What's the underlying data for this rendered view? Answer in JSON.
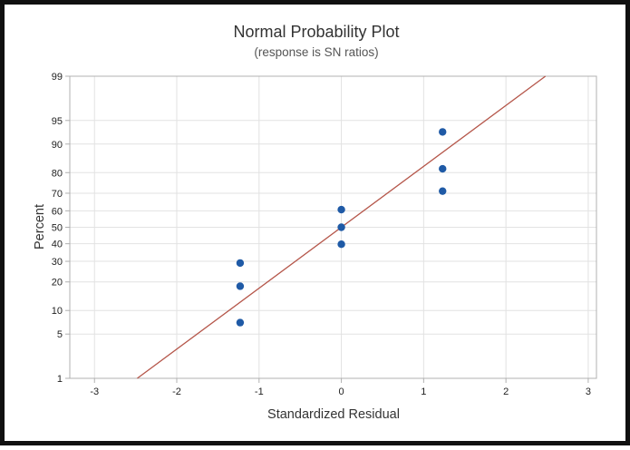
{
  "chart_data": {
    "type": "scatter",
    "title": "Normal Probability Plot",
    "subtitle": "(response is SN ratios)",
    "xlabel": "Standardized Residual",
    "ylabel": "Percent",
    "xlim": [
      -3.3,
      3.1
    ],
    "xticks": [
      -3,
      -2,
      -1,
      0,
      1,
      2,
      3
    ],
    "yscale": "normal-probability",
    "ylim": [
      1,
      99
    ],
    "yticks": [
      1,
      5,
      10,
      20,
      30,
      40,
      50,
      60,
      70,
      80,
      90,
      95,
      99
    ],
    "grid": true,
    "points": [
      {
        "x": -1.23,
        "y": 7.1
      },
      {
        "x": -1.23,
        "y": 18.2
      },
      {
        "x": -1.23,
        "y": 29.1
      },
      {
        "x": 0.0,
        "y": 39.7
      },
      {
        "x": 0.0,
        "y": 50.0
      },
      {
        "x": 0.0,
        "y": 60.7
      },
      {
        "x": 1.23,
        "y": 71.1
      },
      {
        "x": 1.23,
        "y": 81.6
      },
      {
        "x": 1.23,
        "y": 92.9
      }
    ],
    "fit_line": {
      "x": [
        -2.48,
        2.48
      ],
      "y": [
        1,
        99
      ]
    },
    "colors": {
      "points": "#1f5aa6",
      "fit_line": "#b5564a",
      "grid": "#e2e2e2",
      "axis": "#b0b0b0"
    }
  }
}
